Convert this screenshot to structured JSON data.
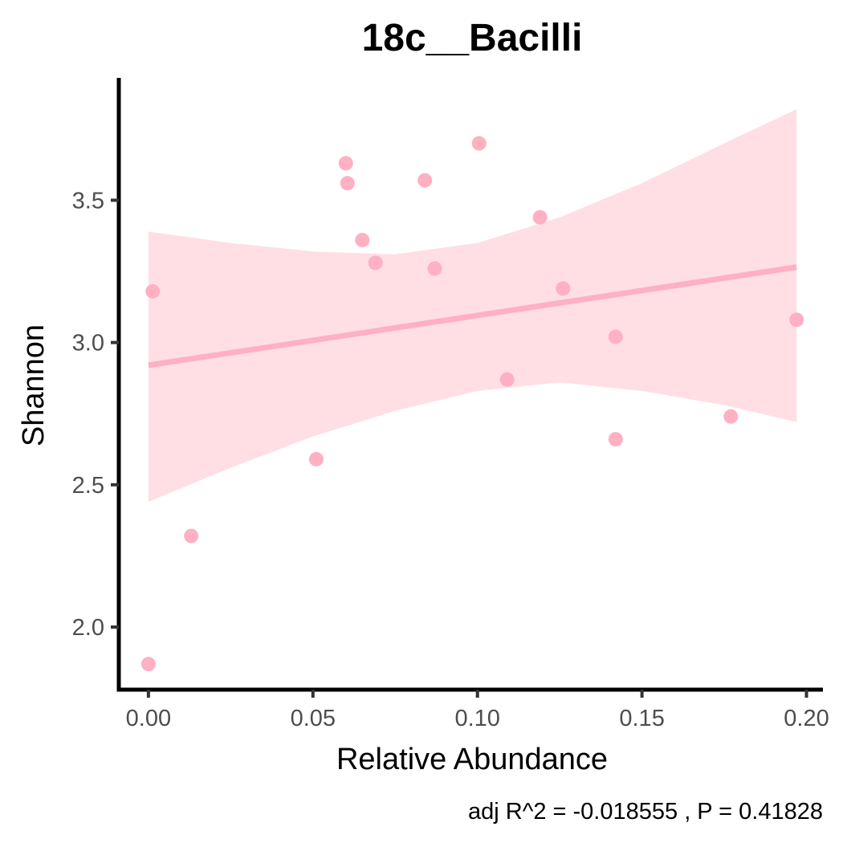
{
  "chart_data": {
    "type": "scatter",
    "title": "18c__Bacilli",
    "xlabel": "Relative Abundance",
    "ylabel": "Shannon",
    "caption": "adj R^2 =  -0.018555 , P = 0.41828",
    "xlim": [
      -0.009,
      0.205
    ],
    "ylim": [
      1.78,
      3.93
    ],
    "x_ticks": [
      0.0,
      0.05,
      0.1,
      0.15,
      0.2
    ],
    "x_tick_labels": [
      "0.00",
      "0.05",
      "0.10",
      "0.15",
      "0.20"
    ],
    "y_ticks": [
      2.0,
      2.5,
      3.0,
      3.5
    ],
    "y_tick_labels": [
      "2.0",
      "2.5",
      "3.0",
      "3.5"
    ],
    "grid": false,
    "points": [
      {
        "x": 0.0,
        "y": 1.87
      },
      {
        "x": 0.0013,
        "y": 3.18
      },
      {
        "x": 0.013,
        "y": 2.32
      },
      {
        "x": 0.051,
        "y": 2.59
      },
      {
        "x": 0.06,
        "y": 3.63
      },
      {
        "x": 0.0605,
        "y": 3.56
      },
      {
        "x": 0.065,
        "y": 3.36
      },
      {
        "x": 0.069,
        "y": 3.28
      },
      {
        "x": 0.084,
        "y": 3.57
      },
      {
        "x": 0.087,
        "y": 3.26
      },
      {
        "x": 0.1005,
        "y": 3.7
      },
      {
        "x": 0.109,
        "y": 2.87
      },
      {
        "x": 0.119,
        "y": 3.44
      },
      {
        "x": 0.126,
        "y": 3.19
      },
      {
        "x": 0.142,
        "y": 3.02
      },
      {
        "x": 0.142,
        "y": 2.66
      },
      {
        "x": 0.177,
        "y": 2.74
      },
      {
        "x": 0.197,
        "y": 3.08
      }
    ],
    "fit_line": {
      "x": [
        0.0,
        0.197
      ],
      "y": [
        2.92,
        3.265
      ]
    },
    "confidence_band": {
      "x": [
        0.0,
        0.025,
        0.05,
        0.075,
        0.1,
        0.125,
        0.15,
        0.175,
        0.197
      ],
      "upper": [
        3.39,
        3.35,
        3.32,
        3.31,
        3.35,
        3.44,
        3.56,
        3.7,
        3.82
      ],
      "lower": [
        2.44,
        2.56,
        2.67,
        2.76,
        2.83,
        2.86,
        2.83,
        2.78,
        2.72
      ]
    },
    "colors": {
      "points": "#ffb0c3",
      "line": "#ffb0c3",
      "band": "#ffdfe4",
      "axis": "#000000",
      "tick_label": "#4d4d4d"
    }
  }
}
